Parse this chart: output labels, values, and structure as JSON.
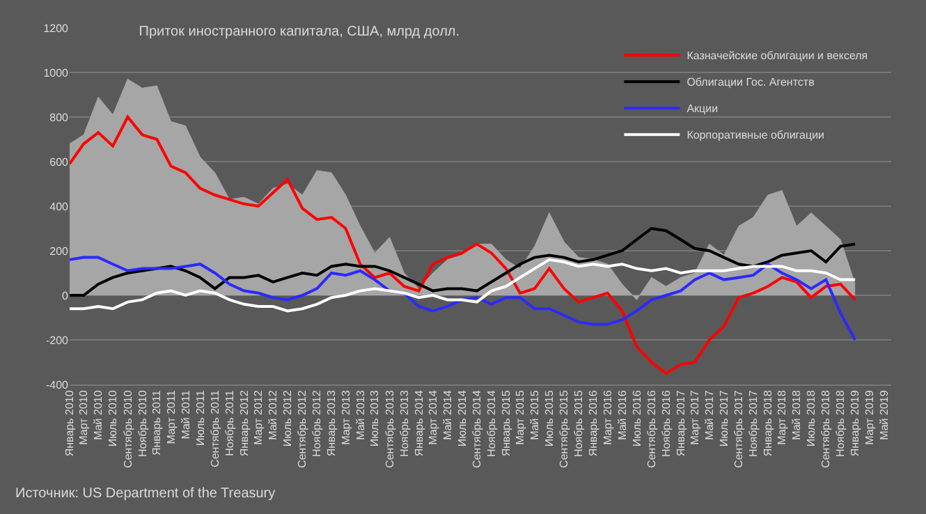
{
  "chart_data": {
    "type": "line",
    "title": "Приток иностранного капитала, США, млрд долл.",
    "annotations": [
      "Источник: US Department of the Treasury"
    ],
    "x": [
      "2010-01",
      "2010-03",
      "2010-05",
      "2010-07",
      "2010-09",
      "2010-11",
      "2011-01",
      "2011-03",
      "2011-05",
      "2011-07",
      "2011-09",
      "2011-11",
      "2012-01",
      "2012-03",
      "2012-05",
      "2012-07",
      "2012-09",
      "2012-11",
      "2013-01",
      "2013-03",
      "2013-05",
      "2013-07",
      "2013-09",
      "2013-11",
      "2014-01",
      "2014-03",
      "2014-05",
      "2014-07",
      "2014-09",
      "2014-11",
      "2015-01",
      "2015-03",
      "2015-05",
      "2015-07",
      "2015-09",
      "2015-11",
      "2016-01",
      "2016-03",
      "2016-05",
      "2016-07",
      "2016-09",
      "2016-11",
      "2017-01",
      "2017-03",
      "2017-05",
      "2017-07",
      "2017-09",
      "2017-11",
      "2018-01",
      "2018-03",
      "2018-05",
      "2018-07",
      "2018-09",
      "2018-11",
      "2019-01"
    ],
    "series": [
      {
        "type": "area",
        "color": "#a6a6a6",
        "values": [
          680,
          720,
          890,
          810,
          970,
          930,
          940,
          780,
          760,
          620,
          550,
          430,
          440,
          410,
          480,
          500,
          450,
          560,
          550,
          450,
          310,
          190,
          260,
          100,
          30,
          100,
          160,
          180,
          230,
          230,
          160,
          120,
          220,
          370,
          240,
          170,
          160,
          140,
          50,
          -20,
          80,
          40,
          80,
          100,
          230,
          180,
          310,
          350,
          450,
          470,
          310,
          370,
          310,
          250,
          50
        ]
      },
      {
        "name": "Казначейские облигации и векселя",
        "color": "#ff0000",
        "values": [
          590,
          680,
          730,
          670,
          800,
          720,
          700,
          580,
          550,
          480,
          450,
          430,
          410,
          400,
          460,
          520,
          390,
          340,
          350,
          300,
          140,
          80,
          100,
          40,
          20,
          140,
          170,
          190,
          230,
          190,
          120,
          10,
          30,
          120,
          30,
          -30,
          -10,
          10,
          -70,
          -230,
          -300,
          -350,
          -310,
          -300,
          -200,
          -140,
          -10,
          10,
          40,
          80,
          60,
          -10,
          40,
          50,
          -20
        ]
      },
      {
        "name": "Облигации Гос. Агентств",
        "color": "#000000",
        "values": [
          0,
          0,
          50,
          80,
          100,
          110,
          120,
          130,
          110,
          80,
          30,
          80,
          80,
          90,
          60,
          80,
          100,
          90,
          130,
          140,
          130,
          130,
          110,
          80,
          50,
          20,
          30,
          30,
          20,
          60,
          100,
          140,
          170,
          180,
          170,
          150,
          160,
          180,
          200,
          250,
          300,
          290,
          250,
          210,
          200,
          170,
          140,
          130,
          150,
          180,
          190,
          200,
          150,
          220,
          230
        ]
      },
      {
        "name": "Акции",
        "color": "#2a2aff",
        "values": [
          160,
          170,
          170,
          140,
          110,
          120,
          120,
          120,
          130,
          140,
          100,
          50,
          20,
          10,
          -10,
          -20,
          0,
          30,
          100,
          90,
          110,
          70,
          20,
          10,
          -50,
          -70,
          -50,
          -20,
          -10,
          -40,
          -10,
          -10,
          -60,
          -60,
          -90,
          -120,
          -130,
          -130,
          -110,
          -70,
          -20,
          0,
          20,
          70,
          100,
          70,
          80,
          90,
          140,
          100,
          70,
          30,
          70,
          -80,
          -200
        ]
      },
      {
        "name": "Корпоративные облигации",
        "color": "#ffffff",
        "values": [
          -60,
          -60,
          -50,
          -60,
          -30,
          -20,
          10,
          20,
          0,
          20,
          10,
          -20,
          -40,
          -50,
          -50,
          -70,
          -60,
          -40,
          -10,
          0,
          20,
          30,
          20,
          10,
          -10,
          0,
          -20,
          -20,
          -30,
          20,
          40,
          80,
          120,
          160,
          150,
          130,
          140,
          130,
          140,
          120,
          110,
          120,
          100,
          110,
          110,
          110,
          120,
          130,
          130,
          130,
          110,
          110,
          100,
          70,
          70
        ]
      }
    ],
    "ylim": [
      -400,
      1200
    ],
    "yticks": [
      -400,
      -200,
      0,
      200,
      400,
      600,
      800,
      1000,
      1200
    ],
    "xlim": [
      "2010-01",
      "2019-06"
    ],
    "xticks": [
      {
        "value": "2010-01",
        "label": "Январь 2010"
      },
      {
        "value": "2010-03",
        "label": "Март 2010"
      },
      {
        "value": "2010-05",
        "label": "Май 2010"
      },
      {
        "value": "2010-07",
        "label": "Июль 2010"
      },
      {
        "value": "2010-09",
        "label": "Сентябрь 2010"
      },
      {
        "value": "2010-11",
        "label": "Ноябрь 2010"
      },
      {
        "value": "2011-01",
        "label": "Январь 2011"
      },
      {
        "value": "2011-03",
        "label": "Март 2011"
      },
      {
        "value": "2011-05",
        "label": "Май 2011"
      },
      {
        "value": "2011-07",
        "label": "Июль 2011"
      },
      {
        "value": "2011-09",
        "label": "Сентябрь 2011"
      },
      {
        "value": "2011-11",
        "label": "Ноябрь 2011"
      },
      {
        "value": "2012-01",
        "label": "Январь 2012"
      },
      {
        "value": "2012-03",
        "label": "Март 2012"
      },
      {
        "value": "2012-05",
        "label": "Май 2012"
      },
      {
        "value": "2012-07",
        "label": "Июль 2012"
      },
      {
        "value": "2012-09",
        "label": "Сентябрь 2012"
      },
      {
        "value": "2012-11",
        "label": "Ноябрь 2012"
      },
      {
        "value": "2013-01",
        "label": "Январь 2013"
      },
      {
        "value": "2013-03",
        "label": "Март 2013"
      },
      {
        "value": "2013-05",
        "label": "Май 2013"
      },
      {
        "value": "2013-07",
        "label": "Июль 2013"
      },
      {
        "value": "2013-09",
        "label": "Сентябрь 2013"
      },
      {
        "value": "2013-11",
        "label": "Ноябрь 2013"
      },
      {
        "value": "2014-01",
        "label": "Январь 2014"
      },
      {
        "value": "2014-03",
        "label": "Март 2014"
      },
      {
        "value": "2014-05",
        "label": "Май 2014"
      },
      {
        "value": "2014-07",
        "label": "Июль 2014"
      },
      {
        "value": "2014-09",
        "label": "Сентябрь 2014"
      },
      {
        "value": "2014-11",
        "label": "Ноябрь 2014"
      },
      {
        "value": "2015-01",
        "label": "Январь 2015"
      },
      {
        "value": "2015-03",
        "label": "Март 2015"
      },
      {
        "value": "2015-05",
        "label": "Май 2015"
      },
      {
        "value": "2015-07",
        "label": "Июль 2015"
      },
      {
        "value": "2015-09",
        "label": "Сентябрь 2015"
      },
      {
        "value": "2015-11",
        "label": "Ноябрь 2015"
      },
      {
        "value": "2016-01",
        "label": "Январь 2016"
      },
      {
        "value": "2016-03",
        "label": "Март 2016"
      },
      {
        "value": "2016-05",
        "label": "Май 2016"
      },
      {
        "value": "2016-07",
        "label": "Июль 2016"
      },
      {
        "value": "2016-09",
        "label": "Сентябрь 2016"
      },
      {
        "value": "2016-11",
        "label": "Ноябрь 2016"
      },
      {
        "value": "2017-01",
        "label": "Январь 2017"
      },
      {
        "value": "2017-03",
        "label": "Март 2017"
      },
      {
        "value": "2017-05",
        "label": "Май 2017"
      },
      {
        "value": "2017-07",
        "label": "Июль 2017"
      },
      {
        "value": "2017-09",
        "label": "Сентябрь 2017"
      },
      {
        "value": "2017-11",
        "label": "Ноябрь 2017"
      },
      {
        "value": "2018-01",
        "label": "Январь 2018"
      },
      {
        "value": "2018-03",
        "label": "Март 2018"
      },
      {
        "value": "2018-05",
        "label": "Май 2018"
      },
      {
        "value": "2018-07",
        "label": "Июль 2018"
      },
      {
        "value": "2018-09",
        "label": "Сентябрь 2018"
      },
      {
        "value": "2018-11",
        "label": "Ноябрь 2018"
      },
      {
        "value": "2019-01",
        "label": "Январь 2019"
      },
      {
        "value": "2019-03",
        "label": "Март 2019"
      },
      {
        "value": "2019-05",
        "label": "Май 2019"
      }
    ],
    "grid": "y",
    "legend": "top right"
  }
}
